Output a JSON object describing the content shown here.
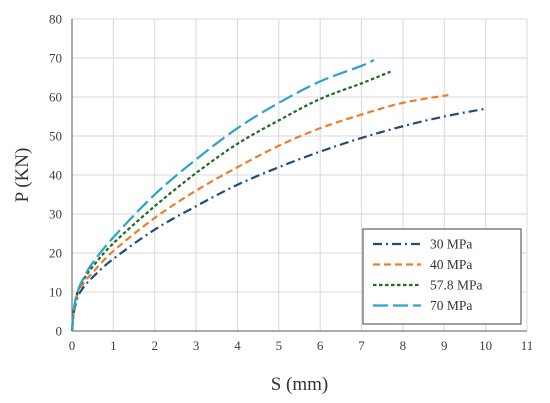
{
  "chart_data": {
    "type": "line",
    "xlabel": "S (mm)",
    "ylabel": "P (KN)",
    "xlim": [
      0,
      11
    ],
    "ylim": [
      0,
      80
    ],
    "xticks": [
      0,
      1,
      2,
      3,
      4,
      5,
      6,
      7,
      8,
      9,
      10,
      11
    ],
    "yticks": [
      0,
      10,
      20,
      30,
      40,
      50,
      60,
      70,
      80
    ],
    "grid": true,
    "legend_position": "bottom-right",
    "series": [
      {
        "name": "30 MPa",
        "color": "#1f4e79",
        "dash": "dash-dot",
        "points": [
          [
            0,
            0
          ],
          [
            0.05,
            5
          ],
          [
            0.15,
            9
          ],
          [
            0.3,
            11.5
          ],
          [
            0.5,
            13.8
          ],
          [
            1.0,
            18.5
          ],
          [
            2.0,
            26
          ],
          [
            3.0,
            32
          ],
          [
            4.0,
            37.5
          ],
          [
            5.0,
            42
          ],
          [
            6.0,
            46
          ],
          [
            7.0,
            49.5
          ],
          [
            8.0,
            52.5
          ],
          [
            9.0,
            55
          ],
          [
            10.0,
            57
          ]
        ]
      },
      {
        "name": "40 MPa",
        "color": "#ed7d31",
        "dash": "dash",
        "points": [
          [
            0,
            0
          ],
          [
            0.05,
            5.5
          ],
          [
            0.15,
            10
          ],
          [
            0.3,
            12.5
          ],
          [
            0.5,
            15
          ],
          [
            1.0,
            20.5
          ],
          [
            2.0,
            29
          ],
          [
            3.0,
            36
          ],
          [
            4.0,
            42
          ],
          [
            5.0,
            47.5
          ],
          [
            6.0,
            52
          ],
          [
            7.0,
            55.5
          ],
          [
            8.0,
            58.5
          ],
          [
            9.1,
            60.5
          ]
        ]
      },
      {
        "name": "57.8 MPa",
        "color": "#1e6b22",
        "dash": "short-dash",
        "points": [
          [
            0,
            0
          ],
          [
            0.05,
            6
          ],
          [
            0.15,
            10.5
          ],
          [
            0.3,
            13.5
          ],
          [
            0.5,
            16.5
          ],
          [
            1.0,
            22.5
          ],
          [
            2.0,
            32
          ],
          [
            3.0,
            40.5
          ],
          [
            4.0,
            48
          ],
          [
            5.0,
            54
          ],
          [
            6.0,
            59.5
          ],
          [
            7.0,
            63.5
          ],
          [
            7.7,
            66.5
          ]
        ]
      },
      {
        "name": "70 MPa",
        "color": "#2aa5c9",
        "dash": "long-dash",
        "points": [
          [
            0,
            0
          ],
          [
            0.05,
            6
          ],
          [
            0.15,
            10.5
          ],
          [
            0.3,
            14
          ],
          [
            0.5,
            17.5
          ],
          [
            1.0,
            24
          ],
          [
            2.0,
            35
          ],
          [
            3.0,
            44
          ],
          [
            4.0,
            52
          ],
          [
            5.0,
            58.5
          ],
          [
            6.0,
            64
          ],
          [
            7.0,
            68
          ],
          [
            7.3,
            69.5
          ]
        ]
      }
    ]
  }
}
